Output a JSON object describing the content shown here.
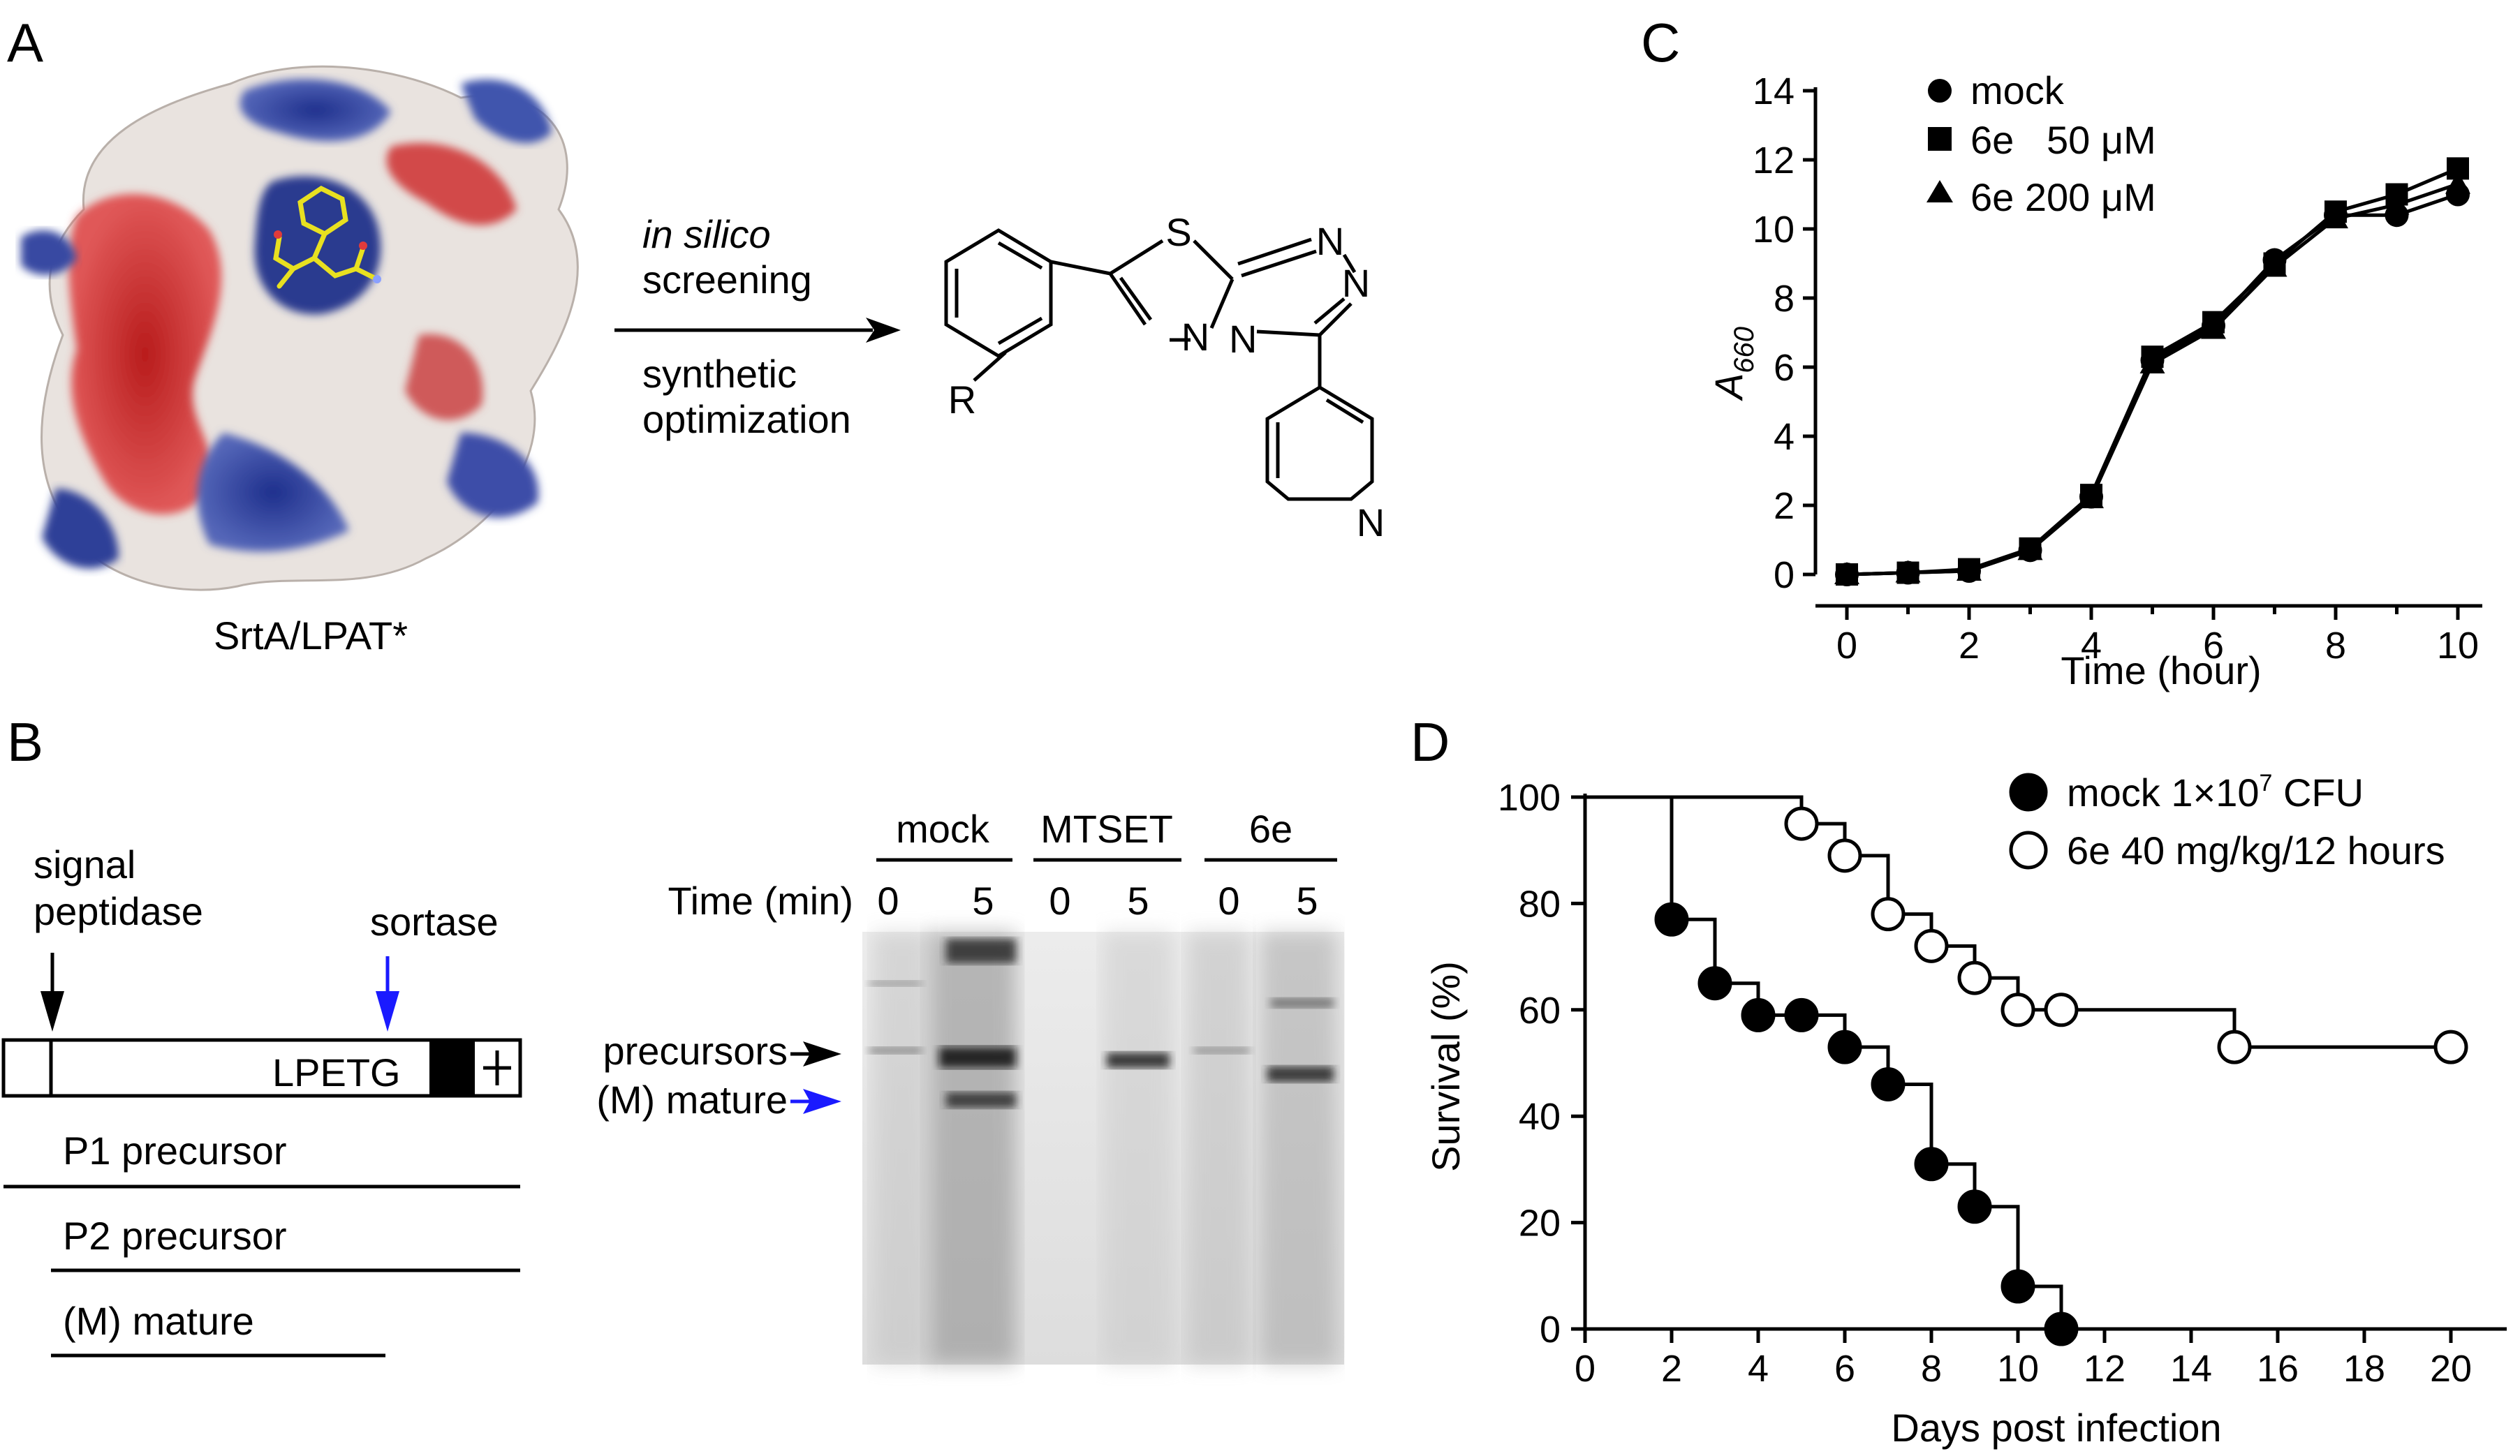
{
  "panels": {
    "A": {
      "letter": "A",
      "protein_label": "SrtA/LPAT*",
      "arrow_top_italic": "in silico",
      "arrow_top": "screening",
      "arrow_bottom_1": "synthetic",
      "arrow_bottom_2": "optimization",
      "molecule": {
        "substituent": "R",
        "atoms": [
          "S",
          "N",
          "N",
          "N",
          "N",
          "N"
        ]
      },
      "colors": {
        "negative": "#d63a3a",
        "positive": "#3a4fa8",
        "neutral": "#e6e0dc",
        "ligand": "#e8e020"
      }
    },
    "B": {
      "letter": "B",
      "signal_label_1": "signal",
      "signal_label_2": "peptidase",
      "sortase_label": "sortase",
      "motif": "LPETG",
      "products": [
        "P1 precursor",
        "P2 precursor",
        "(M) mature"
      ],
      "gel": {
        "groups": [
          "mock",
          "MTSET",
          "6e"
        ],
        "time_label": "Time (min)",
        "time_values": [
          "0",
          "5",
          "0",
          "5",
          "0",
          "5"
        ],
        "band_labels": [
          "precursors",
          "(M) mature"
        ],
        "arrow_colors": [
          "#000000",
          "#1a1aff"
        ]
      }
    },
    "C": {
      "letter": "C",
      "legend_marker_names": [
        "circle-marker",
        "square-marker",
        "triangle-marker"
      ]
    },
    "D": {
      "letter": "D"
    }
  },
  "chart_data": [
    {
      "id": "C",
      "type": "line",
      "title": "",
      "xlabel": "Time (hour)",
      "ylabel": "A660",
      "ylabel_main": "A",
      "ylabel_sub": "660",
      "xlim": [
        0,
        10
      ],
      "ylim": [
        0,
        14
      ],
      "xticks": [
        0,
        2,
        4,
        6,
        8,
        10
      ],
      "yticks": [
        0,
        2,
        4,
        6,
        8,
        10,
        12,
        14
      ],
      "x": [
        0,
        1,
        2,
        3,
        4,
        5,
        6,
        7,
        8,
        9,
        10
      ],
      "series": [
        {
          "name": "mock",
          "legend": "mock",
          "marker": "circle",
          "values": [
            0,
            0.05,
            0.1,
            0.7,
            2.25,
            6.2,
            7.2,
            9.1,
            10.4,
            10.4,
            11.0
          ]
        },
        {
          "name": "6e 50 μM",
          "legend": "6e   50 μM",
          "marker": "square",
          "values": [
            0,
            0.05,
            0.15,
            0.75,
            2.3,
            6.3,
            7.3,
            9.0,
            10.5,
            11.0,
            11.75
          ]
        },
        {
          "name": "6e 200 μM",
          "legend": "6e 200 μM",
          "marker": "triangle",
          "values": [
            0,
            0.05,
            0.1,
            0.7,
            2.2,
            6.1,
            7.1,
            8.9,
            10.3,
            10.7,
            11.3
          ]
        }
      ]
    },
    {
      "id": "D",
      "type": "line",
      "subtype": "kaplan-meier",
      "title": "",
      "xlabel": "Days post infection",
      "ylabel": "Survival (%)",
      "xlim": [
        0,
        20
      ],
      "ylim": [
        0,
        100
      ],
      "xticks": [
        0,
        2,
        4,
        6,
        8,
        10,
        12,
        14,
        16,
        18,
        20
      ],
      "yticks": [
        0,
        20,
        40,
        60,
        80,
        100
      ],
      "series": [
        {
          "name": "mock",
          "legend_prefix": "mock  1×10",
          "legend_sup": "7",
          "legend_suffix": " CFU",
          "marker": "filled-circle",
          "steps": [
            [
              0,
              100
            ],
            [
              2,
              77
            ],
            [
              3,
              65
            ],
            [
              4,
              59
            ],
            [
              5,
              59
            ],
            [
              6,
              53
            ],
            [
              7,
              46
            ],
            [
              8,
              31
            ],
            [
              9,
              23
            ],
            [
              10,
              8
            ],
            [
              11,
              0
            ]
          ],
          "markers": [
            [
              2,
              77
            ],
            [
              3,
              65
            ],
            [
              4,
              59
            ],
            [
              5,
              59
            ],
            [
              6,
              53
            ],
            [
              7,
              46
            ],
            [
              8,
              31
            ],
            [
              9,
              23
            ],
            [
              10,
              8
            ],
            [
              11,
              0
            ]
          ]
        },
        {
          "name": "6e 40 mg/kg/12 hours",
          "legend": "6e 40 mg/kg/12 hours",
          "marker": "open-circle",
          "steps": [
            [
              0,
              100
            ],
            [
              5,
              95
            ],
            [
              6,
              89
            ],
            [
              7,
              78
            ],
            [
              8,
              72
            ],
            [
              9,
              66
            ],
            [
              10,
              60
            ],
            [
              11,
              60
            ],
            [
              15,
              53
            ],
            [
              20,
              53
            ]
          ],
          "markers": [
            [
              5,
              95
            ],
            [
              6,
              89
            ],
            [
              7,
              78
            ],
            [
              8,
              72
            ],
            [
              9,
              66
            ],
            [
              10,
              60
            ],
            [
              11,
              60
            ],
            [
              15,
              53
            ],
            [
              20,
              53
            ]
          ]
        }
      ]
    }
  ]
}
